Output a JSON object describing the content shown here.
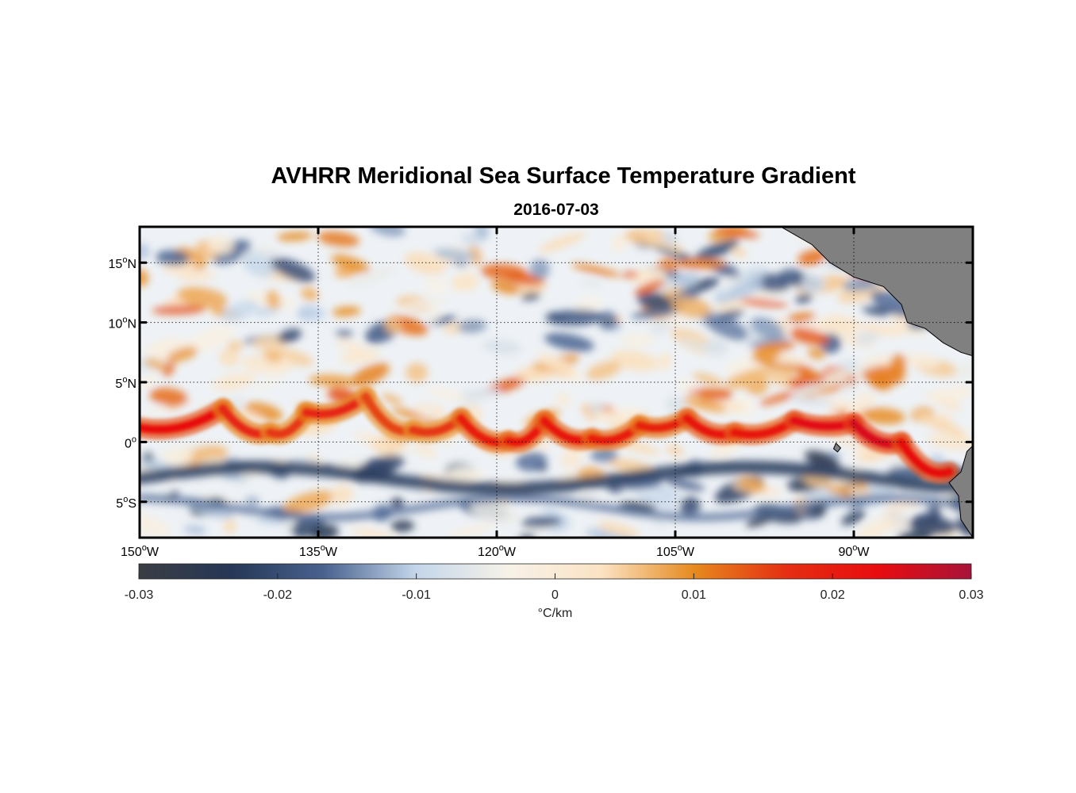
{
  "chart_data": {
    "type": "heatmap",
    "title": "AVHRR Meridional Sea Surface Temperature Gradient",
    "subtitle": "2016-07-03",
    "x_axis": {
      "range": [
        -150,
        -80
      ],
      "ticks": [
        -150,
        -135,
        -120,
        -105,
        -90
      ],
      "tick_labels": [
        {
          "deg": "150",
          "hemi": "W"
        },
        {
          "deg": "135",
          "hemi": "W"
        },
        {
          "deg": "120",
          "hemi": "W"
        },
        {
          "deg": "105",
          "hemi": "W"
        },
        {
          "deg": "90",
          "hemi": "W"
        }
      ]
    },
    "y_axis": {
      "range": [
        -8,
        18
      ],
      "ticks": [
        15,
        10,
        5,
        0,
        -5
      ],
      "tick_labels": [
        {
          "deg": "15",
          "hemi": "N"
        },
        {
          "deg": "10",
          "hemi": "N"
        },
        {
          "deg": "5",
          "hemi": "N"
        },
        {
          "deg": "0",
          "hemi": ""
        },
        {
          "deg": "5",
          "hemi": "S"
        }
      ]
    },
    "grid": true,
    "colorbar": {
      "range": [
        -0.03,
        0.03
      ],
      "ticks": [
        -0.03,
        -0.02,
        -0.01,
        0,
        0.01,
        0.02,
        0.03
      ],
      "tick_labels": [
        "-0.03",
        "-0.02",
        "-0.01",
        "0",
        "0.01",
        "0.02",
        "0.03"
      ],
      "unit_label": "°C/km",
      "colors": [
        "#3a3d44",
        "#263756",
        "#49628f",
        "#c4d6ea",
        "#f7f2e8",
        "#fbe3c4",
        "#e68a1e",
        "#e52e12",
        "#e80c10",
        "#a8133a"
      ]
    },
    "field": {
      "equatorial_front": {
        "description": "positive (warm-to-north) gradient band just north of equator, strength",
        "lon": [
          -150,
          -143,
          -139,
          -136,
          -131,
          -127,
          -123,
          -119,
          -116,
          -112,
          -108,
          -104,
          -100,
          -95,
          -90,
          -86,
          -82
        ],
        "lat": [
          1.2,
          2.8,
          0.8,
          2.5,
          3.8,
          1.0,
          2.0,
          0.1,
          1.8,
          0.3,
          1.4,
          2.0,
          0.8,
          1.8,
          1.6,
          0.0,
          -2.5
        ],
        "value": [
          0.022,
          0.024,
          0.012,
          0.02,
          0.016,
          0.014,
          0.018,
          0.022,
          0.02,
          0.022,
          0.018,
          0.02,
          0.024,
          0.02,
          0.028,
          0.022,
          0.025
        ]
      },
      "south_negative_band_lat": -2.5,
      "south_negative_band_value": -0.022
    },
    "land_color": "#808080"
  }
}
